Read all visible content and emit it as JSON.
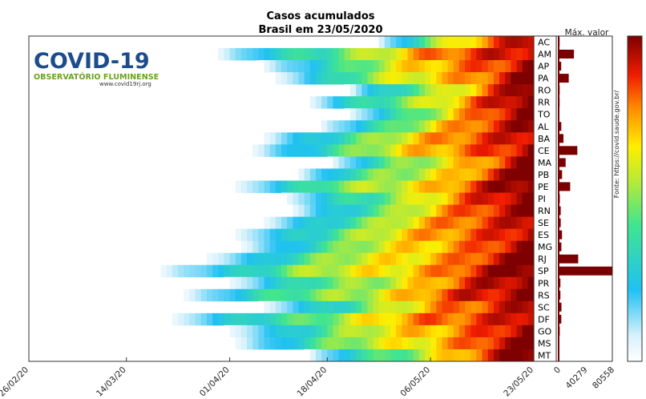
{
  "chart_data": {
    "type": "heatmap",
    "title": "Casos acumulados",
    "subtitle": "Brasil em 23/05/2020",
    "x_tick_labels": [
      "26/02/20",
      "14/03/20",
      "01/04/20",
      "18/04/20",
      "06/05/20",
      "23/05/20"
    ],
    "states": [
      "AC",
      "AM",
      "AP",
      "PA",
      "RO",
      "RR",
      "TO",
      "AL",
      "BA",
      "CE",
      "MA",
      "PB",
      "PE",
      "PI",
      "RN",
      "SE",
      "ES",
      "MG",
      "RJ",
      "SP",
      "PR",
      "RS",
      "SC",
      "DF",
      "GO",
      "MS",
      "MT"
    ],
    "start_day_offset": [
      60,
      32,
      40,
      42,
      55,
      48,
      55,
      50,
      40,
      38,
      52,
      46,
      35,
      44,
      45,
      40,
      35,
      36,
      30,
      22,
      34,
      26,
      40,
      24,
      34,
      35,
      48
    ],
    "max_panel_title": "Máx. valor",
    "max_values": [
      1400,
      23000,
      3900,
      15200,
      1600,
      1500,
      900,
      4000,
      7200,
      28000,
      10500,
      5200,
      17300,
      1800,
      3100,
      3100,
      5000,
      4100,
      29300,
      80558,
      2700,
      2600,
      4200,
      4000,
      1700,
      800,
      1000
    ],
    "max_axis_ticks": [
      "0",
      "40279",
      "80558"
    ],
    "max_axis_range": [
      0,
      80558
    ],
    "colorbar": "jet (low = white/light blue, high = dark red)"
  },
  "logo": {
    "title": "COVID-19",
    "subtitle": "OBSERVATÓRIO FLUMINENSE",
    "url": "www.covid19rj.org"
  },
  "source_note": "Fonte: https://covid.saude.gov.br/"
}
